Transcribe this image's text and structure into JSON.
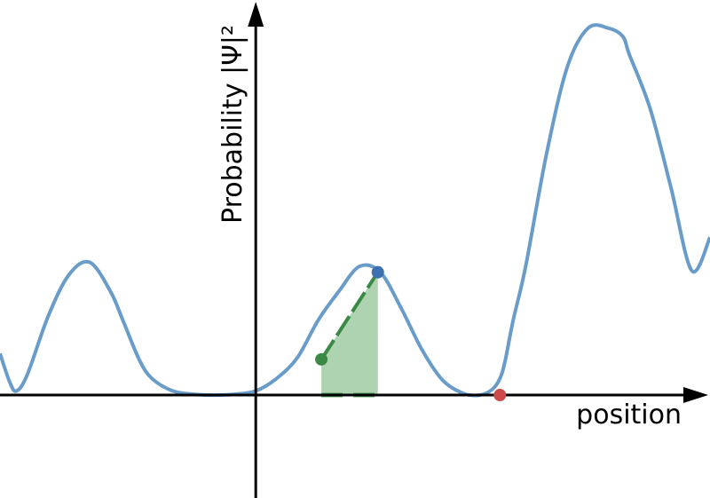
{
  "chart_data": {
    "type": "line",
    "title": "",
    "xlabel": "position",
    "ylabel": "Probability |Ψ|²",
    "grid": false,
    "legend": "none",
    "xlim": [
      -3.08,
      5.47
    ],
    "ylim": [
      -1.24,
      4.76
    ],
    "series": [
      {
        "color": "#6a9cc9",
        "x": [
          -3.08,
          -2.96,
          -2.88,
          -2.75,
          -2.5,
          -2.25,
          -2.0,
          -1.75,
          -1.6,
          -1.4,
          -1.25,
          -1.0,
          -0.75,
          -0.5,
          -0.25,
          0.0,
          0.25,
          0.5,
          0.75,
          1.0,
          1.25,
          1.5,
          1.75,
          2.0,
          2.25,
          2.5,
          2.7,
          2.85,
          2.94,
          3.0,
          3.1,
          3.25,
          3.5,
          3.75,
          4.0,
          4.25,
          4.42,
          4.5,
          4.75,
          5.0,
          5.25,
          5.47
        ],
        "y": [
          0.5,
          0.15,
          0.05,
          0.25,
          0.95,
          1.45,
          1.6,
          1.25,
          0.9,
          0.42,
          0.2,
          0.05,
          0.01,
          0.0,
          0.01,
          0.05,
          0.2,
          0.45,
          0.9,
          1.25,
          1.55,
          1.48,
          1.05,
          0.55,
          0.18,
          0.02,
          0.0,
          0.07,
          0.2,
          0.4,
          0.9,
          1.55,
          2.9,
          3.95,
          4.42,
          4.42,
          4.32,
          4.1,
          3.45,
          2.5,
          1.5,
          1.9
        ]
      }
    ],
    "shaded_region": {
      "x0": 0.79,
      "x1": 1.47,
      "color": "#8cc08f"
    },
    "points": [
      {
        "x": 0.79,
        "y": 0.43,
        "color": "#3a8a46"
      },
      {
        "x": 1.47,
        "y": 1.48,
        "color": "#3c70b0"
      },
      {
        "x": 2.94,
        "y": 0.0,
        "color": "#cc4a4a"
      }
    ],
    "secant_color": "#3a8a46"
  }
}
